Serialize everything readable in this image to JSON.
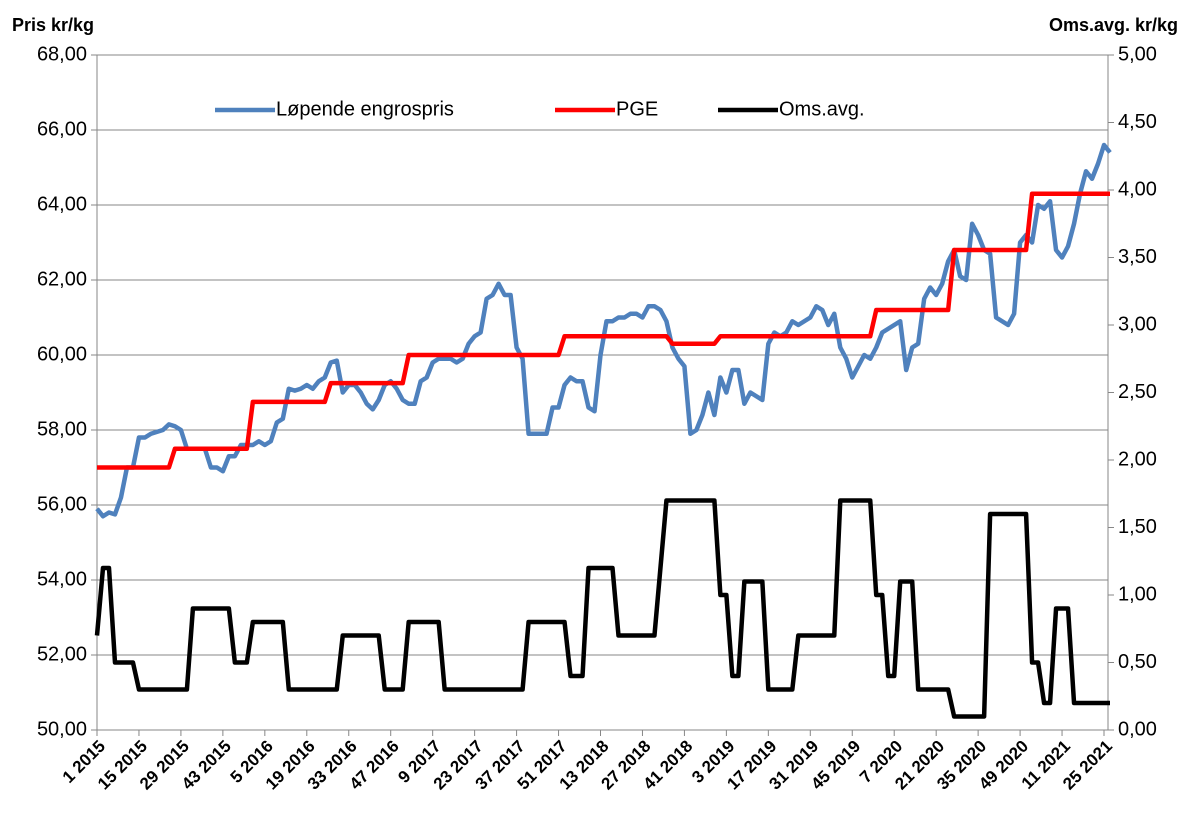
{
  "chart_data": {
    "type": "line",
    "y_label": "Pris kr/kg",
    "y2_label": "Oms.avg. kr/kg",
    "categories": [
      "1 2015",
      null,
      null,
      null,
      null,
      null,
      null,
      "15 2015",
      null,
      null,
      null,
      null,
      null,
      null,
      "29 2015",
      null,
      null,
      null,
      null,
      null,
      null,
      "43 2015",
      null,
      null,
      null,
      null,
      null,
      null,
      "5 2016",
      null,
      null,
      null,
      null,
      null,
      null,
      "19 2016",
      null,
      null,
      null,
      null,
      null,
      null,
      "33 2016",
      null,
      null,
      null,
      null,
      null,
      null,
      "47 2016",
      null,
      null,
      null,
      null,
      null,
      null,
      "9 2017",
      null,
      null,
      null,
      null,
      null,
      null,
      "23 2017",
      null,
      null,
      null,
      null,
      null,
      null,
      "37 2017",
      null,
      null,
      null,
      null,
      null,
      null,
      "51 2017",
      null,
      null,
      null,
      null,
      null,
      null,
      "13 2018",
      null,
      null,
      null,
      null,
      null,
      null,
      "27 2018",
      null,
      null,
      null,
      null,
      null,
      null,
      "41 2018",
      null,
      null,
      null,
      null,
      null,
      null,
      "3 2019",
      null,
      null,
      null,
      null,
      null,
      null,
      "17 2019",
      null,
      null,
      null,
      null,
      null,
      null,
      "31 2019",
      null,
      null,
      null,
      null,
      null,
      null,
      "45 2019",
      null,
      null,
      null,
      null,
      null,
      null,
      "7 2020",
      null,
      null,
      null,
      null,
      null,
      null,
      "21 2020",
      null,
      null,
      null,
      null,
      null,
      null,
      "35 2020",
      null,
      null,
      null,
      null,
      null,
      null,
      "49 2020",
      null,
      null,
      null,
      null,
      null,
      null,
      "11 2021",
      null,
      null,
      null,
      null,
      null,
      null,
      "25 2021",
      null
    ],
    "series": [
      {
        "name": "Løpende engrospris",
        "color": "#4f81bd",
        "values": [
          55.9,
          55.7,
          55.8,
          55.75,
          56.2,
          57.0,
          57.0,
          57.8,
          57.8,
          57.9,
          57.95,
          58.0,
          58.15,
          58.1,
          58.0,
          57.5,
          57.5,
          57.5,
          57.5,
          57.0,
          57.0,
          56.9,
          57.3,
          57.3,
          57.6,
          57.6,
          57.6,
          57.7,
          57.6,
          57.7,
          58.2,
          58.3,
          59.1,
          59.05,
          59.1,
          59.2,
          59.1,
          59.3,
          59.4,
          59.8,
          59.85,
          59.0,
          59.2,
          59.2,
          59.0,
          58.7,
          58.55,
          58.8,
          59.2,
          59.3,
          59.1,
          58.8,
          58.7,
          58.7,
          59.3,
          59.4,
          59.8,
          59.9,
          59.9,
          59.9,
          59.8,
          59.9,
          60.3,
          60.5,
          60.6,
          61.5,
          61.6,
          61.9,
          61.6,
          61.6,
          60.2,
          59.9,
          57.9,
          57.9,
          57.9,
          57.9,
          58.6,
          58.6,
          59.2,
          59.4,
          59.3,
          59.3,
          58.6,
          58.5,
          60.0,
          60.9,
          60.9,
          61.0,
          61.0,
          61.1,
          61.1,
          61.0,
          61.3,
          61.3,
          61.2,
          60.9,
          60.2,
          59.9,
          59.7,
          57.9,
          58.0,
          58.4,
          59.0,
          58.4,
          59.4,
          59.0,
          59.6,
          59.6,
          58.7,
          59.0,
          58.9,
          58.8,
          60.3,
          60.6,
          60.5,
          60.6,
          60.9,
          60.8,
          60.9,
          61.0,
          61.3,
          61.2,
          60.8,
          61.1,
          60.2,
          59.9,
          59.4,
          59.7,
          60.0,
          59.9,
          60.2,
          60.6,
          60.7,
          60.8,
          60.9,
          59.6,
          60.2,
          60.3,
          61.5,
          61.8,
          61.6,
          61.9,
          62.5,
          62.8,
          62.1,
          62.0,
          63.5,
          63.2,
          62.8,
          62.7,
          61.0,
          60.9,
          60.8,
          61.1,
          63.0,
          63.2,
          63.0,
          64.0,
          63.9,
          64.1,
          62.8,
          62.6,
          62.9,
          63.5,
          64.3,
          64.9,
          64.7,
          65.1,
          65.6,
          65.4
        ]
      },
      {
        "name": "PGE",
        "color": "#ff0000",
        "values": [
          57,
          57,
          57,
          57,
          57,
          57,
          57,
          57,
          57,
          57,
          57,
          57,
          57,
          57.5,
          57.5,
          57.5,
          57.5,
          57.5,
          57.5,
          57.5,
          57.5,
          57.5,
          57.5,
          57.5,
          57.5,
          57.5,
          58.75,
          58.75,
          58.75,
          58.75,
          58.75,
          58.75,
          58.75,
          58.75,
          58.75,
          58.75,
          58.75,
          58.75,
          58.75,
          59.25,
          59.25,
          59.25,
          59.25,
          59.25,
          59.25,
          59.25,
          59.25,
          59.25,
          59.25,
          59.25,
          59.25,
          59.25,
          60,
          60,
          60,
          60,
          60,
          60,
          60,
          60,
          60,
          60,
          60,
          60,
          60,
          60,
          60,
          60,
          60,
          60,
          60,
          60,
          60,
          60,
          60,
          60,
          60,
          60,
          60.5,
          60.5,
          60.5,
          60.5,
          60.5,
          60.5,
          60.5,
          60.5,
          60.5,
          60.5,
          60.5,
          60.5,
          60.5,
          60.5,
          60.5,
          60.5,
          60.5,
          60.5,
          60.3,
          60.3,
          60.3,
          60.3,
          60.3,
          60.3,
          60.3,
          60.3,
          60.5,
          60.5,
          60.5,
          60.5,
          60.5,
          60.5,
          60.5,
          60.5,
          60.5,
          60.5,
          60.5,
          60.5,
          60.5,
          60.5,
          60.5,
          60.5,
          60.5,
          60.5,
          60.5,
          60.5,
          60.5,
          60.5,
          60.5,
          60.5,
          60.5,
          60.5,
          61.2,
          61.2,
          61.2,
          61.2,
          61.2,
          61.2,
          61.2,
          61.2,
          61.2,
          61.2,
          61.2,
          61.2,
          61.2,
          62.8,
          62.8,
          62.8,
          62.8,
          62.8,
          62.8,
          62.8,
          62.8,
          62.8,
          62.8,
          62.8,
          62.8,
          62.8,
          64.3,
          64.3,
          64.3,
          64.3,
          64.3,
          64.3,
          64.3,
          64.3,
          64.3,
          64.3,
          64.3,
          64.3,
          64.3,
          64.3
        ]
      },
      {
        "name": "Oms.avg.",
        "color": "#000000",
        "axis": "y2",
        "values": [
          0.7,
          1.2,
          1.2,
          0.5,
          0.5,
          0.5,
          0.5,
          0.3,
          0.3,
          0.3,
          0.3,
          0.3,
          0.3,
          0.3,
          0.3,
          0.3,
          0.9,
          0.9,
          0.9,
          0.9,
          0.9,
          0.9,
          0.9,
          0.5,
          0.5,
          0.5,
          0.8,
          0.8,
          0.8,
          0.8,
          0.8,
          0.8,
          0.3,
          0.3,
          0.3,
          0.3,
          0.3,
          0.3,
          0.3,
          0.3,
          0.3,
          0.7,
          0.7,
          0.7,
          0.7,
          0.7,
          0.7,
          0.7,
          0.3,
          0.3,
          0.3,
          0.3,
          0.8,
          0.8,
          0.8,
          0.8,
          0.8,
          0.8,
          0.3,
          0.3,
          0.3,
          0.3,
          0.3,
          0.3,
          0.3,
          0.3,
          0.3,
          0.3,
          0.3,
          0.3,
          0.3,
          0.3,
          0.8,
          0.8,
          0.8,
          0.8,
          0.8,
          0.8,
          0.8,
          0.4,
          0.4,
          0.4,
          1.2,
          1.2,
          1.2,
          1.2,
          1.2,
          0.7,
          0.7,
          0.7,
          0.7,
          0.7,
          0.7,
          0.7,
          1.2,
          1.7,
          1.7,
          1.7,
          1.7,
          1.7,
          1.7,
          1.7,
          1.7,
          1.7,
          1.0,
          1.0,
          0.4,
          0.4,
          1.1,
          1.1,
          1.1,
          1.1,
          0.3,
          0.3,
          0.3,
          0.3,
          0.3,
          0.7,
          0.7,
          0.7,
          0.7,
          0.7,
          0.7,
          0.7,
          1.7,
          1.7,
          1.7,
          1.7,
          1.7,
          1.7,
          1.0,
          1.0,
          0.4,
          0.4,
          1.1,
          1.1,
          1.1,
          0.3,
          0.3,
          0.3,
          0.3,
          0.3,
          0.3,
          0.1,
          0.1,
          0.1,
          0.1,
          0.1,
          0.1,
          1.6,
          1.6,
          1.6,
          1.6,
          1.6,
          1.6,
          1.6,
          0.5,
          0.5,
          0.2,
          0.2,
          0.9,
          0.9,
          0.9,
          0.2,
          0.2,
          0.2,
          0.2,
          0.2,
          0.2,
          0.2
        ]
      }
    ],
    "ylim": [
      50,
      68
    ],
    "yticks": [
      {
        "value": 50,
        "label": "50,00"
      },
      {
        "value": 52,
        "label": "52,00"
      },
      {
        "value": 54,
        "label": "54,00"
      },
      {
        "value": 56,
        "label": "56,00"
      },
      {
        "value": 58,
        "label": "58,00"
      },
      {
        "value": 60,
        "label": "60,00"
      },
      {
        "value": 62,
        "label": "62,00"
      },
      {
        "value": 64,
        "label": "64,00"
      },
      {
        "value": 66,
        "label": "66,00"
      },
      {
        "value": 68,
        "label": "68,00"
      }
    ],
    "y2lim": [
      0,
      5
    ],
    "y2ticks": [
      {
        "value": 0,
        "label": "0,00"
      },
      {
        "value": 0.5,
        "label": "0,50"
      },
      {
        "value": 1,
        "label": "1,00"
      },
      {
        "value": 1.5,
        "label": "1,50"
      },
      {
        "value": 2,
        "label": "2,00"
      },
      {
        "value": 2.5,
        "label": "2,50"
      },
      {
        "value": 3,
        "label": "3,00"
      },
      {
        "value": 3.5,
        "label": "3,50"
      },
      {
        "value": 4,
        "label": "4,00"
      },
      {
        "value": 4.5,
        "label": "4,50"
      },
      {
        "value": 5,
        "label": "5,00"
      }
    ],
    "grid": true,
    "legend": "top"
  }
}
